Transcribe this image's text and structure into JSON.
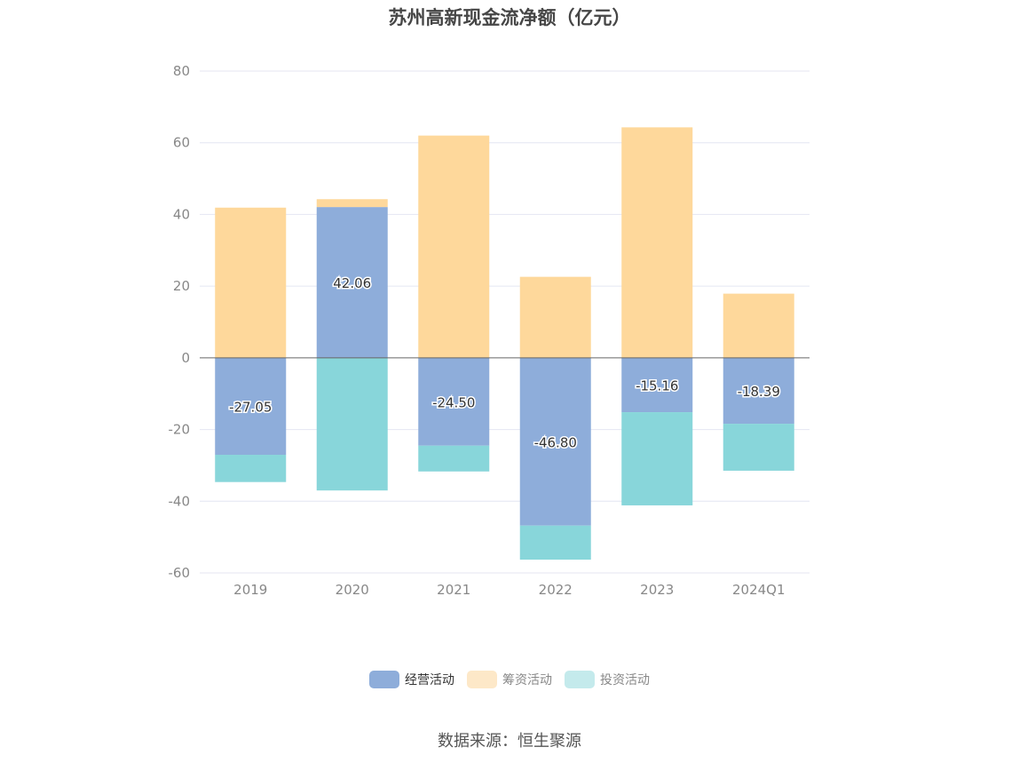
{
  "title": "苏州高新现金流净额（亿元）",
  "source": "数据来源：恒生聚源",
  "colors": {
    "operating": "#8eadda",
    "financing": "#fed89b",
    "investing": "#88d6da",
    "grid": "#e4e6f2",
    "axis": "#666666",
    "tick_text": "#888888"
  },
  "legend": [
    {
      "name": "经营活动",
      "color": "#8eadda",
      "swatch": "#8eadda"
    },
    {
      "name": "筹资活动",
      "color": "#fed89b",
      "swatch": "#fde8c8"
    },
    {
      "name": "投资活动",
      "color": "#88d6da",
      "swatch": "#c4eaec"
    }
  ],
  "chart_data": {
    "type": "bar",
    "stacked": true,
    "title": "苏州高新现金流净额（亿元）",
    "categories": [
      "2019",
      "2020",
      "2021",
      "2022",
      "2023",
      "2024Q1"
    ],
    "ylim": [
      -60,
      80
    ],
    "yticks": [
      -60,
      -40,
      -20,
      0,
      20,
      40,
      60,
      80
    ],
    "grid": true,
    "legend_position": "bottom",
    "series": [
      {
        "name": "经营活动",
        "values": [
          -27.05,
          42.06,
          -24.5,
          -46.8,
          -15.16,
          -18.39
        ],
        "labels": [
          "-27.05",
          "42.06",
          "-24.50",
          "-46.80",
          "-15.16",
          "-18.39"
        ]
      },
      {
        "name": "筹资活动",
        "values": [
          41.9,
          2.2,
          62.0,
          22.6,
          64.3,
          17.9
        ]
      },
      {
        "name": "投资活动",
        "values": [
          -7.6,
          -37.0,
          -7.2,
          -9.5,
          -26.0,
          -13.1
        ]
      }
    ]
  }
}
